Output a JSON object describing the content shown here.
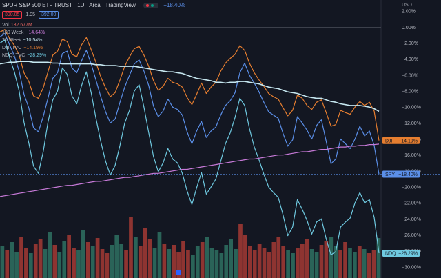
{
  "header": {
    "title": "SPDR S&P 500 ETF TRUST",
    "interval": "1D",
    "exchange": "Arca",
    "source": "TradingView",
    "change": "−18.40%",
    "bid": "390.05",
    "spread": "1.95",
    "ask": "392.00"
  },
  "legend": {
    "vol_label": "Vol",
    "vol_value": "132.677M",
    "ma100_label": "100 Week",
    "ma100_value": "−14.64%",
    "ma20_label": "20 Week",
    "ma20_value": "−10.54%",
    "dji_label": "DJI, TVC",
    "dji_value": "−14.19%",
    "ndq_label": "NDQ, TVC",
    "ndq_value": "−28.29%"
  },
  "colors": {
    "background": "#131722",
    "spy": "#5b8fe8",
    "dji": "#e67e30",
    "ndq": "#6fc9e0",
    "ma20": "#c6e7f0",
    "ma100": "#c77ad8",
    "vol_up": "#2a6358",
    "vol_down": "#8e3431",
    "grid": "#2a2e39",
    "axis_text": "#b2b5be"
  },
  "chart_data": {
    "type": "line",
    "title": "SPDR S&P 500 ETF TRUST · 1D · Arca",
    "ylabel": "USD",
    "yunit": "%",
    "ylim": [
      -31.4,
      3.4
    ],
    "yticks": [
      "2.00%",
      "0.00%",
      "−2.00%",
      "−4.00%",
      "−6.00%",
      "−8.00%",
      "−10.00%",
      "−12.00%",
      "−14.00%",
      "−16.00%",
      "−18.00%",
      "−20.00%",
      "−22.00%",
      "−24.00%",
      "−26.00%",
      "−28.00%",
      "−30.00%"
    ],
    "ytick_values": [
      2,
      0,
      -2,
      -4,
      -6,
      -8,
      -10,
      -12,
      -14,
      -16,
      -18,
      -20,
      -22,
      -24,
      -26,
      -28,
      -30
    ],
    "y_axis_header": "USD",
    "zero_line": 0,
    "series": [
      {
        "name": "SPY",
        "tag": "−18.40%",
        "values": [
          -1.2,
          -0.8,
          -2.2,
          -3.6,
          -5.5,
          -8.4,
          -10.1,
          -12.6,
          -13.1,
          -11.2,
          -8.9,
          -6.4,
          -5.7,
          -3.3,
          -3.0,
          -5.1,
          -5.7,
          -4.2,
          -2.9,
          -4.6,
          -6.6,
          -8.7,
          -10.6,
          -12.0,
          -11.5,
          -9.4,
          -7.5,
          -6.0,
          -4.6,
          -4.1,
          -5.5,
          -7.3,
          -9.9,
          -11.2,
          -10.5,
          -9.0,
          -10.0,
          -10.3,
          -11.0,
          -13.1,
          -14.6,
          -13.0,
          -11.8,
          -13.8,
          -13.0,
          -12.5,
          -11.0,
          -9.8,
          -9.2,
          -8.2,
          -5.7,
          -4.5,
          -6.0,
          -7.0,
          -8.1,
          -9.4,
          -10.6,
          -11.0,
          -11.4,
          -13.3,
          -14.9,
          -14.1,
          -11.2,
          -12.0,
          -12.9,
          -14.0,
          -12.3,
          -11.6,
          -14.3,
          -17.1,
          -16.5,
          -14.0,
          -14.6,
          -15.2,
          -14.0,
          -12.4,
          -13.6,
          -13.0,
          -14.8,
          -18.4
        ]
      },
      {
        "name": "DJI",
        "tag": "−14.19%",
        "values": [
          -0.6,
          -0.3,
          -1.4,
          -2.3,
          -3.5,
          -5.7,
          -6.8,
          -8.6,
          -8.9,
          -7.6,
          -5.6,
          -3.5,
          -3.0,
          -1.5,
          -1.8,
          -3.4,
          -3.7,
          -2.2,
          -1.3,
          -2.8,
          -4.4,
          -6.2,
          -7.6,
          -8.7,
          -8.2,
          -6.6,
          -4.9,
          -3.7,
          -2.7,
          -2.4,
          -3.5,
          -4.9,
          -6.7,
          -7.9,
          -7.4,
          -6.4,
          -6.9,
          -7.1,
          -7.5,
          -8.8,
          -9.7,
          -8.4,
          -7.0,
          -8.3,
          -7.5,
          -6.9,
          -5.5,
          -4.5,
          -3.9,
          -3.4,
          -2.3,
          -2.9,
          -4.5,
          -5.7,
          -6.6,
          -7.4,
          -8.3,
          -8.7,
          -9.0,
          -10.1,
          -11.1,
          -10.4,
          -8.5,
          -8.9,
          -9.8,
          -10.3,
          -9.4,
          -9.1,
          -10.7,
          -12.4,
          -12.2,
          -10.4,
          -10.7,
          -10.9,
          -10.0,
          -9.3,
          -9.8,
          -9.4,
          -10.5,
          -14.19
        ]
      },
      {
        "name": "NDQ",
        "tag": "−28.29%",
        "values": [
          -2.0,
          -1.6,
          -3.8,
          -5.6,
          -8.0,
          -11.9,
          -14.5,
          -17.4,
          -18.3,
          -15.6,
          -11.9,
          -9.1,
          -8.0,
          -5.1,
          -5.9,
          -8.6,
          -9.6,
          -7.3,
          -5.6,
          -8.2,
          -11.4,
          -14.3,
          -16.8,
          -18.5,
          -17.3,
          -14.8,
          -12.0,
          -10.4,
          -8.0,
          -7.2,
          -10.0,
          -13.2,
          -16.2,
          -18.1,
          -17.0,
          -15.2,
          -16.5,
          -17.0,
          -18.3,
          -20.5,
          -22.2,
          -20.1,
          -18.2,
          -20.9,
          -20.0,
          -19.0,
          -16.8,
          -14.6,
          -13.2,
          -11.3,
          -8.9,
          -9.8,
          -12.7,
          -15.0,
          -16.6,
          -18.4,
          -20.0,
          -20.7,
          -21.3,
          -23.5,
          -26.1,
          -25.0,
          -21.6,
          -22.8,
          -24.2,
          -25.9,
          -24.4,
          -24.0,
          -26.5,
          -28.5,
          -28.1,
          -25.0,
          -24.4,
          -23.9,
          -22.0,
          -20.7,
          -22.0,
          -21.6,
          -23.8,
          -28.29
        ]
      },
      {
        "name": "20 Week",
        "tag": "−10.54%",
        "values": [
          -4.6,
          -4.5,
          -4.4,
          -4.4,
          -4.3,
          -4.3,
          -4.3,
          -4.4,
          -4.4,
          -4.4,
          -4.4,
          -4.5,
          -4.5,
          -4.6,
          -4.6,
          -4.6,
          -4.6,
          -4.6,
          -4.6,
          -4.6,
          -4.7,
          -4.7,
          -4.8,
          -4.8,
          -4.8,
          -4.9,
          -4.9,
          -4.9,
          -4.9,
          -5.0,
          -5.1,
          -5.2,
          -5.3,
          -5.4,
          -5.5,
          -5.6,
          -5.6,
          -5.7,
          -5.8,
          -6.0,
          -6.2,
          -6.4,
          -6.5,
          -6.6,
          -6.7,
          -6.9,
          -6.9,
          -7.0,
          -6.9,
          -6.9,
          -6.8,
          -6.8,
          -6.9,
          -7.0,
          -7.1,
          -7.3,
          -7.5,
          -7.6,
          -7.7,
          -7.9,
          -8.1,
          -8.2,
          -8.3,
          -8.5,
          -8.7,
          -8.8,
          -8.9,
          -8.9,
          -9.1,
          -9.3,
          -9.4,
          -9.6,
          -9.7,
          -9.8,
          -9.8,
          -9.8,
          -9.9,
          -10.0,
          -10.2,
          -10.54
        ]
      },
      {
        "name": "100 Week",
        "tag": "−14.64%",
        "values": [
          -21.2,
          -21.1,
          -21.0,
          -20.9,
          -20.8,
          -20.7,
          -20.6,
          -20.5,
          -20.4,
          -20.3,
          -20.2,
          -20.1,
          -20.0,
          -19.9,
          -19.8,
          -19.8,
          -19.7,
          -19.6,
          -19.5,
          -19.4,
          -19.3,
          -19.3,
          -19.2,
          -19.1,
          -19.0,
          -18.9,
          -18.8,
          -18.8,
          -18.7,
          -18.6,
          -18.5,
          -18.4,
          -18.3,
          -18.3,
          -18.2,
          -18.1,
          -18.0,
          -17.9,
          -17.8,
          -17.8,
          -17.7,
          -17.6,
          -17.5,
          -17.4,
          -17.3,
          -17.2,
          -17.1,
          -17.0,
          -16.9,
          -16.8,
          -16.7,
          -16.6,
          -16.5,
          -16.5,
          -16.4,
          -16.3,
          -16.2,
          -16.1,
          -16.0,
          -16.0,
          -15.9,
          -15.8,
          -15.7,
          -15.6,
          -15.6,
          -15.5,
          -15.4,
          -15.3,
          -15.3,
          -15.2,
          -15.1,
          -15.0,
          -15.0,
          -14.9,
          -14.9,
          -14.8,
          -14.8,
          -14.7,
          -14.7,
          -14.64
        ]
      }
    ],
    "volume": {
      "label": "Vol",
      "last": "132.677M",
      "values": [
        46,
        40,
        52,
        38,
        60,
        44,
        36,
        50,
        56,
        42,
        66,
        48,
        38,
        54,
        62,
        44,
        40,
        70,
        52,
        46,
        58,
        42,
        36,
        48,
        62,
        50,
        40,
        88,
        60,
        46,
        72,
        56,
        44,
        66,
        50,
        42,
        48,
        38,
        54,
        40,
        34,
        46,
        52,
        60,
        44,
        40,
        36,
        48,
        56,
        42,
        78,
        62,
        46,
        40,
        50,
        44,
        38,
        52,
        60,
        46,
        40,
        36,
        44,
        50,
        56,
        42,
        38,
        48,
        54,
        60,
        46,
        40,
        52,
        44,
        38,
        46,
        42,
        36,
        40,
        58
      ],
      "up": [
        1,
        0,
        1,
        1,
        0,
        0,
        1,
        0,
        0,
        1,
        1,
        0,
        1,
        1,
        0,
        0,
        1,
        1,
        0,
        1,
        0,
        0,
        0,
        1,
        1,
        1,
        0,
        0,
        1,
        0,
        0,
        0,
        1,
        1,
        0,
        1,
        0,
        0,
        0,
        0,
        1,
        1,
        0,
        1,
        1,
        1,
        1,
        1,
        1,
        1,
        0,
        0,
        0,
        0,
        0,
        0,
        0,
        0,
        0,
        0,
        1,
        1,
        0,
        0,
        0,
        1,
        1,
        0,
        0,
        1,
        1,
        0,
        0,
        1,
        1,
        0,
        1,
        0,
        0,
        1
      ]
    },
    "price_tags": [
      {
        "name": "DJI",
        "text": "−14.19%",
        "series": "DJI"
      },
      {
        "name": "SPY",
        "text": "−18.40%",
        "series": "SPY"
      },
      {
        "name": "NDQ",
        "text": "−28.29%",
        "series": "NDQ"
      }
    ],
    "dashed_line_at": -18.4,
    "grid": false
  }
}
